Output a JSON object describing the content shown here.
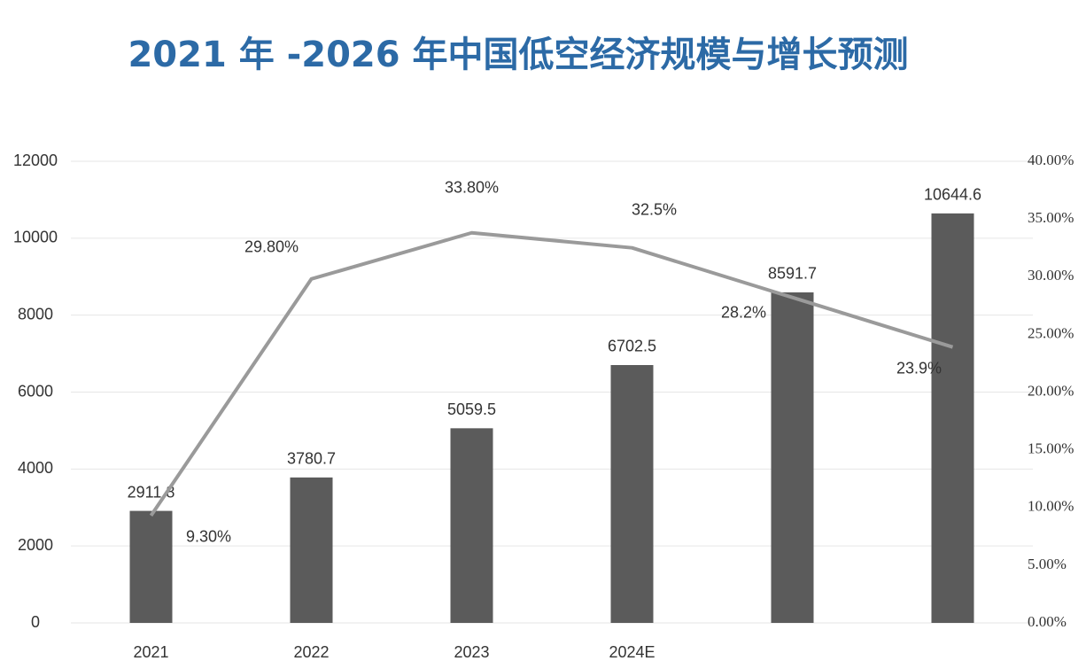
{
  "chart_data": {
    "type": "bar-line",
    "title": "2021 年 -2026 年中国低空经济规模与增长预测",
    "categories": [
      "2021",
      "2022",
      "2023",
      "2024E",
      null,
      null
    ],
    "series": [
      {
        "type": "bar",
        "color": "#5b5b5b",
        "values": [
          2911.8,
          3780.7,
          5059.5,
          6702.5,
          8591.7,
          10644.6
        ]
      },
      {
        "type": "line",
        "axis": "y2",
        "color": "#9a9a9a",
        "values": [
          9.3,
          29.8,
          33.8,
          32.5,
          28.2,
          23.9
        ],
        "value_labels": [
          "9.30%",
          "29.80%",
          "33.80%",
          "32.5%",
          "28.2%",
          "23.9%"
        ]
      }
    ],
    "ylim": [
      0,
      12000
    ],
    "yticks": [
      0,
      2000,
      4000,
      6000,
      8000,
      10000,
      12000
    ],
    "y2lim": [
      0,
      40
    ],
    "y2ticks": [
      {
        "value": 0,
        "label": "0.00%"
      },
      {
        "value": 5,
        "label": "5.00%"
      },
      {
        "value": 10,
        "label": "10.00%"
      },
      {
        "value": 15,
        "label": "15.00%"
      },
      {
        "value": 20,
        "label": "20.00%"
      },
      {
        "value": 25,
        "label": "25.00%"
      },
      {
        "value": 30,
        "label": "30.00%"
      },
      {
        "value": 35,
        "label": "35.00%"
      },
      {
        "value": 40,
        "label": "40.00%"
      }
    ],
    "grid": true
  }
}
